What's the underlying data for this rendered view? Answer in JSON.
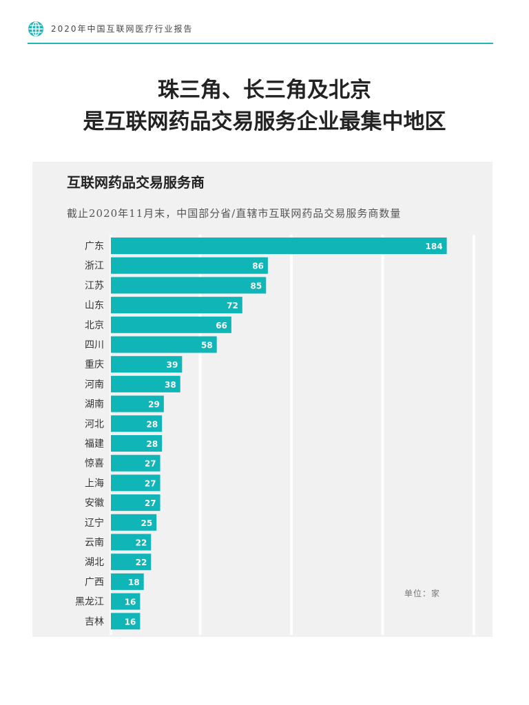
{
  "header": {
    "report_title": "2020年中国互联网医疗行业报告",
    "icon": "globe-icon",
    "accent": "#1fb6b9"
  },
  "main_title": {
    "line1": "珠三角、长三角及北京",
    "line2": "是互联网药品交易服务企业最集中地区"
  },
  "chart_data": {
    "type": "bar",
    "orientation": "horizontal",
    "title": "互联网药品交易服务商",
    "subtitle": "截止2020年11月末，中国部分省/直辖市互联网药品交易服务商数量",
    "unit": "单位：家",
    "bar_color": "#10b5b8",
    "categories": [
      "广东",
      "浙江",
      "江苏",
      "山东",
      "北京",
      "四川",
      "重庆",
      "河南",
      "湖南",
      "河北",
      "福建",
      "惊喜",
      "上海",
      "安徽",
      "辽宁",
      "云南",
      "湖北",
      "广西",
      "黑龙江",
      "吉林"
    ],
    "values": [
      184,
      86,
      85,
      72,
      66,
      58,
      39,
      38,
      29,
      28,
      28,
      27,
      27,
      27,
      25,
      22,
      22,
      18,
      16,
      16
    ],
    "xlim": [
      0,
      200
    ],
    "grid": true
  }
}
